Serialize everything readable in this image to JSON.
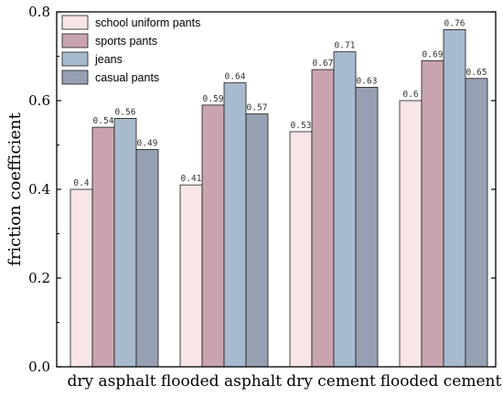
{
  "chart_data": {
    "type": "bar",
    "ylabel": "friction coefficient",
    "ylim": [
      0,
      0.8
    ],
    "yticks": [
      "0.0",
      "0.2",
      "0.4",
      "0.6",
      "0.8"
    ],
    "categories": [
      "dry asphalt",
      "flooded asphalt",
      "dry cement",
      "flooded cement"
    ],
    "legend_position": "top-left",
    "series": [
      {
        "name": "school uniform pants",
        "color": "#F8E5E5",
        "values": [
          0.4,
          0.41,
          0.53,
          0.6
        ],
        "labels": [
          "0.4",
          "0.41",
          "0.53",
          "0.6"
        ]
      },
      {
        "name": "sports pants",
        "color": "#C9A4AF",
        "values": [
          0.54,
          0.59,
          0.67,
          0.69
        ],
        "labels": [
          "0.54",
          "0.59",
          "0.67",
          "0.69"
        ]
      },
      {
        "name": "jeans",
        "color": "#A8BACE",
        "values": [
          0.56,
          0.64,
          0.71,
          0.76
        ],
        "labels": [
          "0.56",
          "0.64",
          "0.71",
          "0.76"
        ]
      },
      {
        "name": "casual pants",
        "color": "#97A0B2",
        "values": [
          0.49,
          0.57,
          0.63,
          0.65
        ],
        "labels": [
          "0.49",
          "0.57",
          "0.63",
          "0.65"
        ]
      }
    ]
  }
}
